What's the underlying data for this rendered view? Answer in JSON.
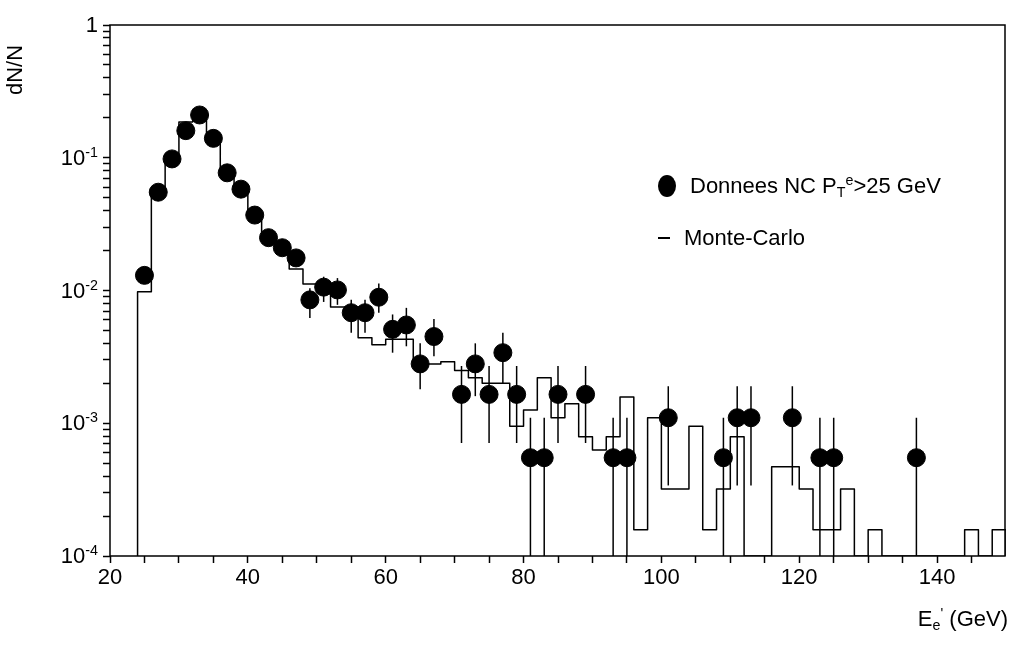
{
  "chart_data": {
    "type": "scatter",
    "xlabel": "E$_{e}$$^{'}$ (GeV)",
    "ylabel": "dN/N",
    "log": "y",
    "grid": false,
    "legend": "top right",
    "marker": "circle",
    "xlim": [
      20,
      150
    ],
    "ylim": [
      0.0001,
      1
    ],
    "xticks": [
      20,
      {
        "value": 25,
        "label": null
      },
      {
        "value": 30,
        "label": null
      },
      {
        "value": 35,
        "label": null
      },
      40,
      {
        "value": 45,
        "label": null
      },
      {
        "value": 50,
        "label": null
      },
      {
        "value": 55,
        "label": null
      },
      60,
      {
        "value": 65,
        "label": null
      },
      {
        "value": 70,
        "label": null
      },
      {
        "value": 75,
        "label": null
      },
      80,
      {
        "value": 85,
        "label": null
      },
      {
        "value": 90,
        "label": null
      },
      {
        "value": 95,
        "label": null
      },
      100,
      {
        "value": 105,
        "label": null
      },
      {
        "value": 110,
        "label": null
      },
      {
        "value": 115,
        "label": null
      },
      120,
      {
        "value": 125,
        "label": null
      },
      {
        "value": 130,
        "label": null
      },
      {
        "value": 135,
        "label": null
      },
      140,
      {
        "value": 145,
        "label": null
      }
    ],
    "yticks": [
      {
        "value": 0.0001,
        "label": "10$^{-4}$"
      },
      {
        "value": 0.0002,
        "label": null
      },
      {
        "value": 0.0003,
        "label": null
      },
      {
        "value": 0.0004,
        "label": null
      },
      {
        "value": 0.0005,
        "label": null
      },
      {
        "value": 0.0006,
        "label": null
      },
      {
        "value": 0.0007,
        "label": null
      },
      {
        "value": 0.0008,
        "label": null
      },
      {
        "value": 0.0009,
        "label": null
      },
      {
        "value": 0.001,
        "label": "10$^{-3}$"
      },
      {
        "value": 0.002,
        "label": null
      },
      {
        "value": 0.003,
        "label": null
      },
      {
        "value": 0.004,
        "label": null
      },
      {
        "value": 0.005,
        "label": null
      },
      {
        "value": 0.006,
        "label": null
      },
      {
        "value": 0.007,
        "label": null
      },
      {
        "value": 0.008,
        "label": null
      },
      {
        "value": 0.009,
        "label": null
      },
      {
        "value": 0.01,
        "label": "10$^{-2}$"
      },
      {
        "value": 0.02,
        "label": null
      },
      {
        "value": 0.03,
        "label": null
      },
      {
        "value": 0.04,
        "label": null
      },
      {
        "value": 0.05,
        "label": null
      },
      {
        "value": 0.06,
        "label": null
      },
      {
        "value": 0.07,
        "label": null
      },
      {
        "value": 0.08,
        "label": null
      },
      {
        "value": 0.09,
        "label": null
      },
      {
        "value": 0.1,
        "label": "10$^{-1}$"
      },
      {
        "value": 0.2,
        "label": null
      },
      {
        "value": 0.3,
        "label": null
      },
      {
        "value": 0.4,
        "label": null
      },
      {
        "value": 0.5,
        "label": null
      },
      {
        "value": 0.6,
        "label": null
      },
      {
        "value": 0.7,
        "label": null
      },
      {
        "value": 0.8,
        "label": null
      },
      {
        "value": 0.9,
        "label": null
      },
      1
    ],
    "series": [
      {
        "name": "Donnees NC P$_{T}$$^{e}$>25 GeV",
        "type": "scatter",
        "color": "#000000",
        "x": [
          25,
          27,
          29,
          31,
          33,
          35,
          37,
          39,
          41,
          43,
          45,
          47,
          49,
          51,
          53,
          55,
          57,
          59,
          61,
          63,
          65,
          67,
          71,
          73,
          75,
          77,
          79,
          81,
          83,
          85,
          89,
          93,
          95,
          101,
          109,
          111,
          113,
          119,
          123,
          125,
          137
        ],
        "values": [
          0.013,
          0.055,
          0.098,
          0.16,
          0.21,
          0.14,
          0.077,
          0.058,
          0.037,
          0.025,
          0.021,
          0.0176,
          0.0085,
          0.0106,
          0.0101,
          0.0068,
          0.0068,
          0.0089,
          0.0051,
          0.0055,
          0.0028,
          0.0045,
          0.00165,
          0.0028,
          0.00165,
          0.0034,
          0.00165,
          0.00055,
          0.00055,
          0.00165,
          0.00165,
          0.00055,
          0.00055,
          0.0011,
          0.00055,
          0.0011,
          0.0011,
          0.0011,
          0.00055,
          0.00055,
          0.00055
        ],
        "errors": [
          null,
          null,
          null,
          null,
          null,
          null,
          null,
          null,
          null,
          null,
          null,
          null,
          [
            0.0062,
            0.0104
          ],
          [
            0.0082,
            0.0127
          ],
          [
            0.0078,
            0.0124
          ],
          [
            0.0048,
            0.0085
          ],
          [
            0.0048,
            0.0085
          ],
          [
            0.0068,
            0.0113
          ],
          [
            0.0034,
            0.0066
          ],
          [
            0.0038,
            0.0074
          ],
          [
            0.0018,
            0.004
          ],
          [
            0.0032,
            0.0061
          ],
          [
            0.00071,
            0.0027
          ],
          [
            0.0016,
            0.004
          ],
          [
            0.00071,
            0.0027
          ],
          [
            0.002,
            0.0048
          ],
          [
            0.00071,
            0.0027
          ],
          [
            0.0001,
            0.0011
          ],
          [
            0.0001,
            0.0011
          ],
          [
            0.00071,
            0.0027
          ],
          [
            0.00071,
            0.0027
          ],
          [
            0.0001,
            0.0011
          ],
          [
            0.0001,
            0.0011
          ],
          [
            0.00034,
            0.0019
          ],
          [
            0.0001,
            0.0011
          ],
          [
            0.00034,
            0.0019
          ],
          [
            0.00034,
            0.0019
          ],
          [
            0.00034,
            0.0019
          ],
          [
            0.0001,
            0.0011
          ],
          [
            0.0001,
            0.0011
          ],
          [
            0.0001,
            0.0011
          ]
        ]
      },
      {
        "name": "Monte-Carlo",
        "type": "histogram",
        "color": "#000000",
        "bins": [
          24,
          26,
          28,
          30,
          32,
          34,
          36,
          38,
          40,
          42,
          44,
          46,
          48,
          50,
          52,
          54,
          56,
          58,
          60,
          62,
          64,
          66,
          68,
          70,
          72,
          74,
          76,
          78,
          80,
          82,
          84,
          86,
          88,
          90,
          92,
          94,
          96,
          98,
          100,
          102,
          104,
          106,
          108,
          110,
          112,
          114,
          116,
          118,
          120,
          122,
          124,
          126,
          128,
          130,
          132,
          134,
          136,
          138,
          140,
          142,
          144,
          146,
          148,
          150
        ],
        "values": [
          0.0098,
          0.059,
          0.102,
          0.186,
          0.225,
          0.136,
          0.077,
          0.058,
          0.036,
          0.025,
          0.0205,
          0.0145,
          0.0112,
          0.0112,
          0.0075,
          0.0075,
          0.0044,
          0.0039,
          0.0043,
          0.0043,
          0.0028,
          0.0028,
          0.0029,
          0.0025,
          0.0022,
          0.002,
          0.002,
          0.00095,
          0.00126,
          0.0022,
          0.0011,
          0.0014,
          0.00079,
          0.00063,
          0.00079,
          0.00158,
          0.000158,
          0.0011,
          0.00032,
          0.00032,
          0.00095,
          0.000158,
          0.00032,
          0.00079,
          null,
          null,
          0.00047,
          0.00047,
          0.00032,
          0.000158,
          0.000158,
          0.00032,
          null,
          0.000158,
          null,
          null,
          null,
          null,
          null,
          null,
          0.000158,
          null,
          0.000158
        ]
      }
    ]
  }
}
